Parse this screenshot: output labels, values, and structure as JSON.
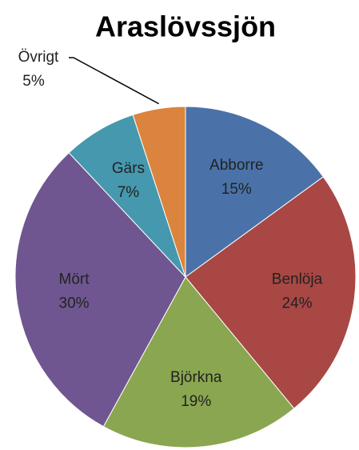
{
  "chart_data": {
    "type": "pie",
    "title": "Araslövssjön",
    "categories": [
      "Abborre",
      "Benlöja",
      "Björkna",
      "Mört",
      "Gärs",
      "Övrigt"
    ],
    "values": [
      15,
      24,
      19,
      30,
      7,
      5
    ],
    "value_labels": [
      "15%",
      "24%",
      "19%",
      "30%",
      "7%",
      "5%"
    ],
    "colors": [
      "#4a72a8",
      "#a84744",
      "#8aa650",
      "#6f5690",
      "#4598ae",
      "#db843d"
    ]
  }
}
